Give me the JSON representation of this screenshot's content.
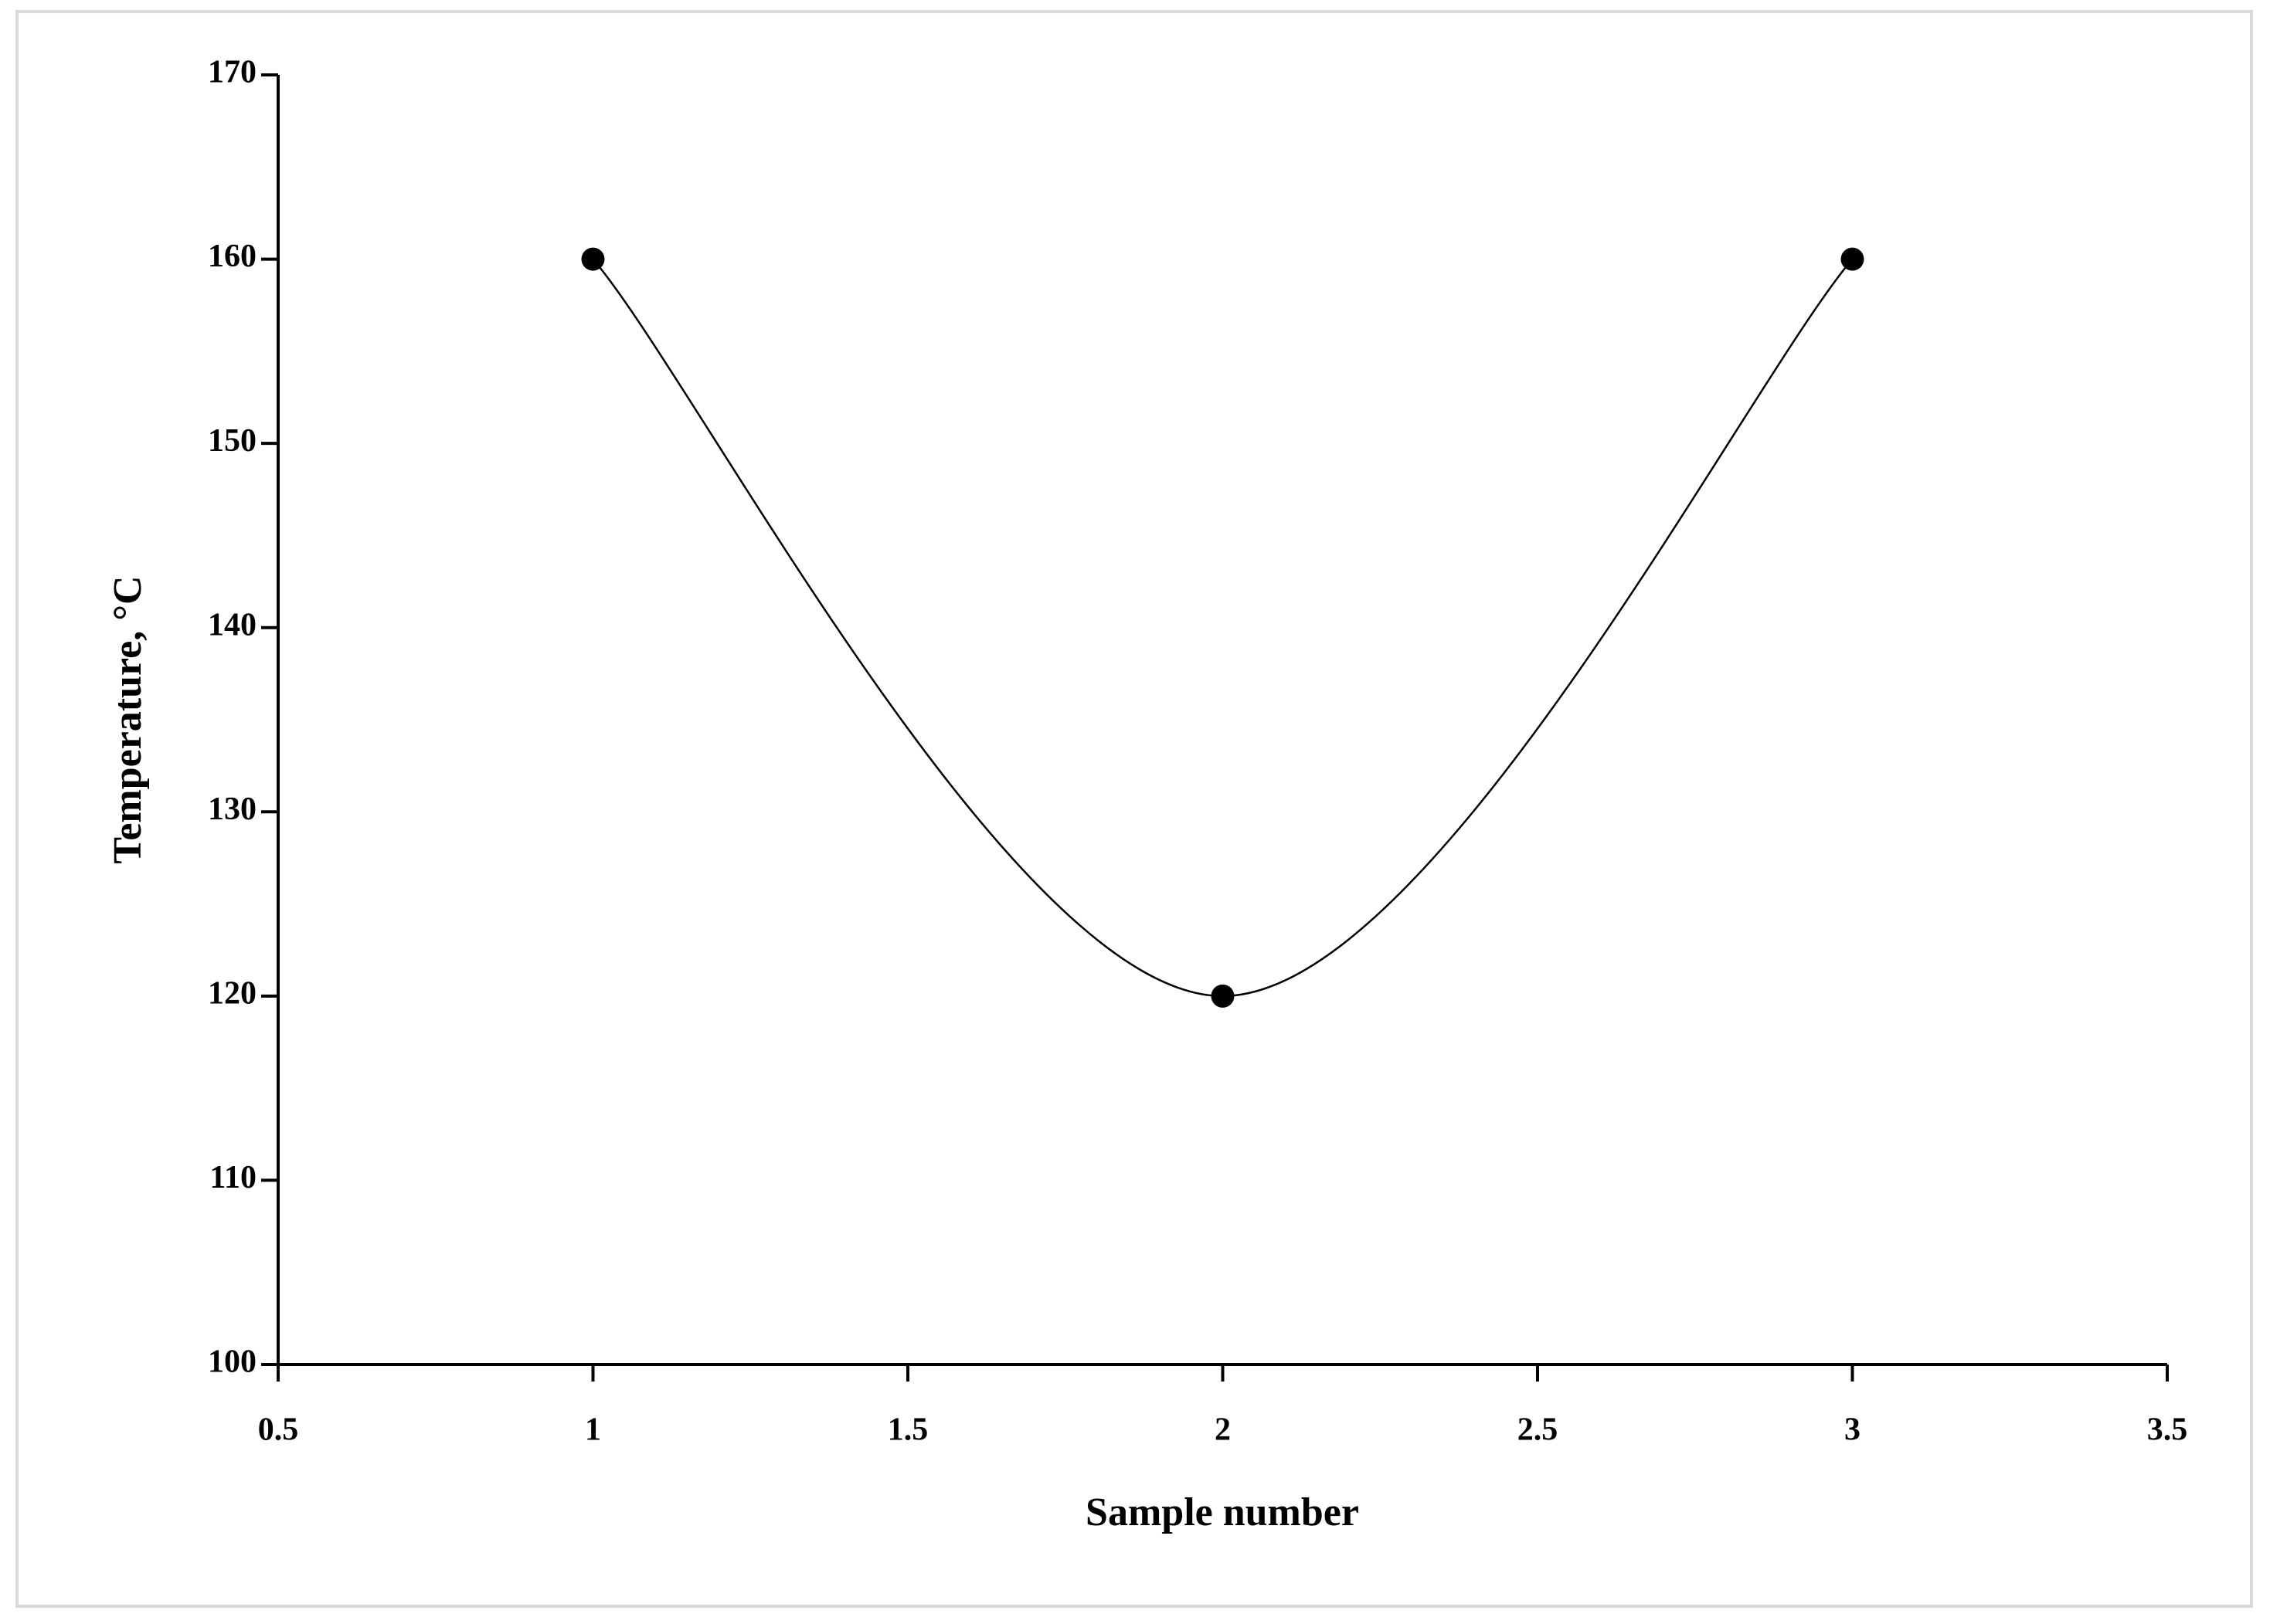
{
  "chart_data": {
    "type": "line",
    "x_label": "Sample number",
    "y_label": "Temperature,  °C",
    "x": [
      1,
      2,
      3
    ],
    "series": [
      {
        "color": "#000000",
        "values": [
          160,
          120,
          160
        ]
      }
    ],
    "xlim": [
      0.5,
      3.5
    ],
    "xticks": [
      0.5,
      1,
      1.5,
      2,
      2.5,
      3,
      3.5
    ],
    "ylim": [
      100,
      170
    ],
    "yticks": [
      100,
      110,
      120,
      130,
      140,
      150,
      160,
      170
    ],
    "smooth": true,
    "markers": true,
    "grid": false
  }
}
